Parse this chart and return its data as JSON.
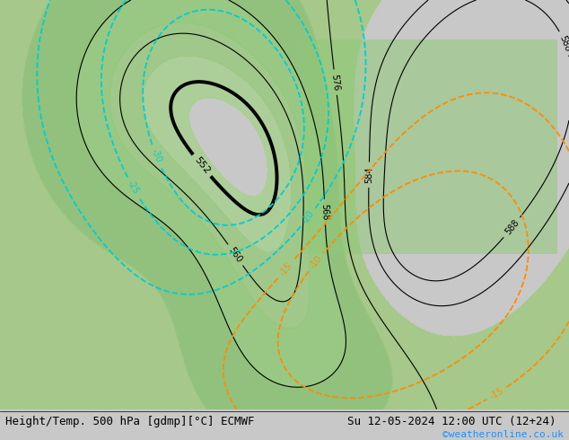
{
  "title_left": "Height/Temp. 500 hPa [gdmp][°C] ECMWF",
  "title_right": "Su 12-05-2024 12:00 UTC (12+24)",
  "watermark": "©weatheronline.co.uk",
  "bg_color": "#c8c8c8",
  "green_fill_color": "#90c878",
  "height_contour_color": "#000000",
  "temp_warm_color": "#ff8c00",
  "temp_cold_color": "#00ced1",
  "temp_green_color": "#4aaa4a",
  "title_fontsize": 9,
  "watermark_color": "#1e90ff",
  "figsize": [
    6.34,
    4.9
  ],
  "dpi": 100
}
